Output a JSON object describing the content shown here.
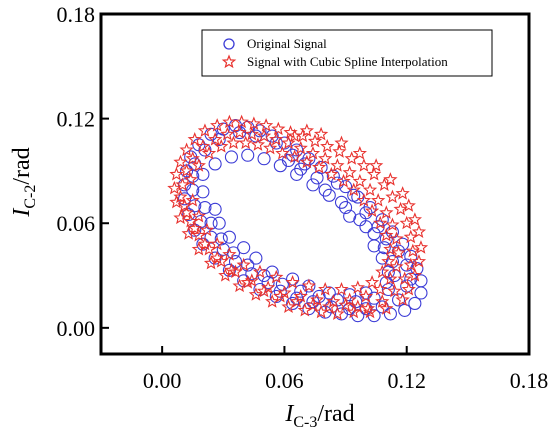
{
  "chart_data": {
    "type": "scatter",
    "title": "",
    "xlabel": {
      "main": "I",
      "subscript": "C-3",
      "unit": "/rad"
    },
    "ylabel": {
      "main": "I",
      "subscript": "C-2",
      "unit": "/rad"
    },
    "xlim": [
      -0.03,
      0.18
    ],
    "ylim": [
      -0.015,
      0.18
    ],
    "x_ticks": [
      "0.00",
      "0.06",
      "0.12",
      "0.18"
    ],
    "x_tick_values": [
      0.0,
      0.06,
      0.12,
      0.18
    ],
    "y_ticks": [
      "0.00",
      "0.06",
      "0.12",
      "0.18"
    ],
    "y_tick_values": [
      0.0,
      0.06,
      0.12,
      0.18
    ],
    "grid": false,
    "legend_position": "top-right",
    "series": [
      {
        "name": "Original Signal",
        "marker": "circle",
        "color": "#3b3bd6",
        "points": [
          [
            0.012,
            0.09
          ],
          [
            0.014,
            0.098
          ],
          [
            0.018,
            0.105
          ],
          [
            0.024,
            0.111
          ],
          [
            0.03,
            0.114
          ],
          [
            0.036,
            0.116
          ],
          [
            0.042,
            0.115
          ],
          [
            0.048,
            0.113
          ],
          [
            0.054,
            0.11
          ],
          [
            0.06,
            0.106
          ],
          [
            0.066,
            0.102
          ],
          [
            0.072,
            0.097
          ],
          [
            0.078,
            0.092
          ],
          [
            0.084,
            0.087
          ],
          [
            0.09,
            0.081
          ],
          [
            0.096,
            0.075
          ],
          [
            0.102,
            0.069
          ],
          [
            0.108,
            0.062
          ],
          [
            0.113,
            0.055
          ],
          [
            0.118,
            0.048
          ],
          [
            0.122,
            0.041
          ],
          [
            0.125,
            0.034
          ],
          [
            0.127,
            0.027
          ],
          [
            0.127,
            0.02
          ],
          [
            0.124,
            0.014
          ],
          [
            0.119,
            0.01
          ],
          [
            0.112,
            0.008
          ],
          [
            0.104,
            0.007
          ],
          [
            0.096,
            0.007
          ],
          [
            0.088,
            0.008
          ],
          [
            0.08,
            0.009
          ],
          [
            0.072,
            0.011
          ],
          [
            0.064,
            0.014
          ],
          [
            0.056,
            0.018
          ],
          [
            0.048,
            0.022
          ],
          [
            0.04,
            0.027
          ],
          [
            0.033,
            0.033
          ],
          [
            0.026,
            0.04
          ],
          [
            0.02,
            0.048
          ],
          [
            0.016,
            0.056
          ],
          [
            0.013,
            0.065
          ],
          [
            0.011,
            0.074
          ],
          [
            0.011,
            0.082
          ],
          [
            0.02,
            0.088
          ],
          [
            0.026,
            0.094
          ],
          [
            0.034,
            0.098
          ],
          [
            0.042,
            0.099
          ],
          [
            0.05,
            0.097
          ],
          [
            0.058,
            0.093
          ],
          [
            0.066,
            0.088
          ],
          [
            0.074,
            0.082
          ],
          [
            0.082,
            0.076
          ],
          [
            0.09,
            0.069
          ],
          [
            0.097,
            0.062
          ],
          [
            0.104,
            0.054
          ],
          [
            0.109,
            0.046
          ],
          [
            0.113,
            0.038
          ],
          [
            0.114,
            0.03
          ],
          [
            0.111,
            0.022
          ],
          [
            0.104,
            0.017
          ],
          [
            0.095,
            0.015
          ],
          [
            0.086,
            0.016
          ],
          [
            0.077,
            0.018
          ],
          [
            0.068,
            0.021
          ],
          [
            0.059,
            0.025
          ],
          [
            0.05,
            0.03
          ],
          [
            0.042,
            0.036
          ],
          [
            0.035,
            0.043
          ],
          [
            0.029,
            0.051
          ],
          [
            0.024,
            0.06
          ],
          [
            0.021,
            0.069
          ],
          [
            0.02,
            0.078
          ],
          [
            0.016,
            0.094
          ],
          [
            0.021,
            0.102
          ],
          [
            0.028,
            0.108
          ],
          [
            0.038,
            0.112
          ],
          [
            0.046,
            0.11
          ],
          [
            0.056,
            0.106
          ],
          [
            0.064,
            0.099
          ],
          [
            0.07,
            0.094
          ],
          [
            0.086,
            0.083
          ],
          [
            0.094,
            0.076
          ],
          [
            0.1,
            0.066
          ],
          [
            0.106,
            0.058
          ],
          [
            0.11,
            0.051
          ],
          [
            0.116,
            0.044
          ],
          [
            0.12,
            0.036
          ],
          [
            0.122,
            0.028
          ],
          [
            0.12,
            0.024
          ],
          [
            0.116,
            0.016
          ],
          [
            0.108,
            0.012
          ],
          [
            0.1,
            0.011
          ],
          [
            0.092,
            0.011
          ],
          [
            0.083,
            0.012
          ],
          [
            0.074,
            0.015
          ],
          [
            0.066,
            0.017
          ],
          [
            0.058,
            0.021
          ],
          [
            0.052,
            0.026
          ],
          [
            0.044,
            0.031
          ],
          [
            0.036,
            0.038
          ],
          [
            0.03,
            0.045
          ],
          [
            0.024,
            0.052
          ],
          [
            0.019,
            0.061
          ],
          [
            0.016,
            0.07
          ],
          [
            0.015,
            0.079
          ],
          [
            0.015,
            0.087
          ],
          [
            0.062,
            0.096
          ],
          [
            0.068,
            0.091
          ],
          [
            0.076,
            0.086
          ],
          [
            0.08,
            0.079
          ],
          [
            0.088,
            0.072
          ],
          [
            0.092,
            0.064
          ],
          [
            0.1,
            0.058
          ],
          [
            0.104,
            0.047
          ],
          [
            0.108,
            0.04
          ],
          [
            0.111,
            0.032
          ],
          [
            0.11,
            0.026
          ],
          [
            0.1,
            0.02
          ],
          [
            0.092,
            0.019
          ],
          [
            0.082,
            0.02
          ],
          [
            0.072,
            0.024
          ],
          [
            0.064,
            0.028
          ],
          [
            0.054,
            0.032
          ],
          [
            0.046,
            0.04
          ],
          [
            0.04,
            0.046
          ],
          [
            0.033,
            0.052
          ],
          [
            0.028,
            0.06
          ],
          [
            0.026,
            0.068
          ]
        ]
      },
      {
        "name": "Signal with Cubic Spline Interpolation",
        "marker": "star",
        "color": "#e8322e",
        "points": [
          [
            0.006,
            0.08
          ],
          [
            0.007,
            0.088
          ],
          [
            0.009,
            0.095
          ],
          [
            0.012,
            0.102
          ],
          [
            0.016,
            0.108
          ],
          [
            0.021,
            0.113
          ],
          [
            0.027,
            0.116
          ],
          [
            0.033,
            0.118
          ],
          [
            0.039,
            0.118
          ],
          [
            0.045,
            0.117
          ],
          [
            0.051,
            0.116
          ],
          [
            0.057,
            0.114
          ],
          [
            0.063,
            0.112
          ],
          [
            0.069,
            0.11
          ],
          [
            0.075,
            0.107
          ],
          [
            0.081,
            0.104
          ],
          [
            0.087,
            0.101
          ],
          [
            0.093,
            0.097
          ],
          [
            0.099,
            0.093
          ],
          [
            0.104,
            0.088
          ],
          [
            0.109,
            0.082
          ],
          [
            0.113,
            0.075
          ],
          [
            0.117,
            0.068
          ],
          [
            0.12,
            0.06
          ],
          [
            0.122,
            0.052
          ],
          [
            0.123,
            0.044
          ],
          [
            0.122,
            0.036
          ],
          [
            0.119,
            0.028
          ],
          [
            0.114,
            0.021
          ],
          [
            0.108,
            0.015
          ],
          [
            0.101,
            0.011
          ],
          [
            0.094,
            0.009
          ],
          [
            0.086,
            0.008
          ],
          [
            0.078,
            0.009
          ],
          [
            0.07,
            0.01
          ],
          [
            0.062,
            0.012
          ],
          [
            0.054,
            0.015
          ],
          [
            0.046,
            0.019
          ],
          [
            0.038,
            0.024
          ],
          [
            0.031,
            0.03
          ],
          [
            0.024,
            0.037
          ],
          [
            0.018,
            0.045
          ],
          [
            0.013,
            0.054
          ],
          [
            0.009,
            0.063
          ],
          [
            0.007,
            0.072
          ],
          [
            0.01,
            0.082
          ],
          [
            0.012,
            0.09
          ],
          [
            0.015,
            0.097
          ],
          [
            0.02,
            0.104
          ],
          [
            0.026,
            0.108
          ],
          [
            0.032,
            0.111
          ],
          [
            0.038,
            0.112
          ],
          [
            0.044,
            0.111
          ],
          [
            0.05,
            0.11
          ],
          [
            0.056,
            0.108
          ],
          [
            0.062,
            0.106
          ],
          [
            0.068,
            0.103
          ],
          [
            0.074,
            0.1
          ],
          [
            0.08,
            0.097
          ],
          [
            0.086,
            0.093
          ],
          [
            0.092,
            0.089
          ],
          [
            0.097,
            0.084
          ],
          [
            0.102,
            0.079
          ],
          [
            0.106,
            0.073
          ],
          [
            0.11,
            0.066
          ],
          [
            0.113,
            0.059
          ],
          [
            0.115,
            0.051
          ],
          [
            0.116,
            0.043
          ],
          [
            0.115,
            0.035
          ],
          [
            0.112,
            0.028
          ],
          [
            0.107,
            0.022
          ],
          [
            0.1,
            0.018
          ],
          [
            0.092,
            0.016
          ],
          [
            0.084,
            0.015
          ],
          [
            0.076,
            0.016
          ],
          [
            0.068,
            0.018
          ],
          [
            0.06,
            0.02
          ],
          [
            0.052,
            0.023
          ],
          [
            0.044,
            0.027
          ],
          [
            0.036,
            0.032
          ],
          [
            0.029,
            0.038
          ],
          [
            0.023,
            0.045
          ],
          [
            0.018,
            0.053
          ],
          [
            0.014,
            0.061
          ],
          [
            0.011,
            0.07
          ],
          [
            0.014,
            0.085
          ],
          [
            0.018,
            0.093
          ],
          [
            0.023,
            0.1
          ],
          [
            0.029,
            0.104
          ],
          [
            0.035,
            0.106
          ],
          [
            0.041,
            0.106
          ],
          [
            0.047,
            0.105
          ],
          [
            0.053,
            0.103
          ],
          [
            0.059,
            0.1
          ],
          [
            0.065,
            0.098
          ],
          [
            0.071,
            0.095
          ],
          [
            0.077,
            0.092
          ],
          [
            0.083,
            0.088
          ],
          [
            0.089,
            0.084
          ],
          [
            0.094,
            0.079
          ],
          [
            0.099,
            0.073
          ],
          [
            0.103,
            0.067
          ],
          [
            0.107,
            0.06
          ],
          [
            0.11,
            0.053
          ],
          [
            0.112,
            0.045
          ],
          [
            0.111,
            0.038
          ],
          [
            0.108,
            0.032
          ],
          [
            0.103,
            0.026
          ],
          [
            0.096,
            0.023
          ],
          [
            0.088,
            0.022
          ],
          [
            0.08,
            0.022
          ],
          [
            0.072,
            0.024
          ],
          [
            0.064,
            0.026
          ],
          [
            0.056,
            0.029
          ],
          [
            0.048,
            0.032
          ],
          [
            0.04,
            0.036
          ],
          [
            0.033,
            0.042
          ],
          [
            0.027,
            0.048
          ],
          [
            0.022,
            0.056
          ],
          [
            0.018,
            0.064
          ],
          [
            0.015,
            0.073
          ],
          [
            0.065,
            0.11
          ],
          [
            0.071,
            0.113
          ],
          [
            0.078,
            0.111
          ],
          [
            0.088,
            0.106
          ],
          [
            0.097,
            0.1
          ],
          [
            0.105,
            0.093
          ],
          [
            0.112,
            0.085
          ],
          [
            0.118,
            0.077
          ],
          [
            0.121,
            0.07
          ],
          [
            0.124,
            0.062
          ],
          [
            0.126,
            0.055
          ],
          [
            0.127,
            0.046
          ],
          [
            0.126,
            0.038
          ],
          [
            0.124,
            0.03
          ],
          [
            0.121,
            0.022
          ],
          [
            0.118,
            0.016
          ],
          [
            0.11,
            0.011
          ],
          [
            0.102,
            0.009
          ],
          [
            0.096,
            0.012
          ],
          [
            0.09,
            0.013
          ],
          [
            0.082,
            0.012
          ],
          [
            0.074,
            0.013
          ],
          [
            0.066,
            0.015
          ],
          [
            0.058,
            0.018
          ],
          [
            0.05,
            0.021
          ],
          [
            0.042,
            0.026
          ],
          [
            0.034,
            0.033
          ],
          [
            0.027,
            0.04
          ],
          [
            0.021,
            0.048
          ],
          [
            0.016,
            0.057
          ],
          [
            0.012,
            0.066
          ],
          [
            0.009,
            0.075
          ]
        ]
      }
    ]
  }
}
